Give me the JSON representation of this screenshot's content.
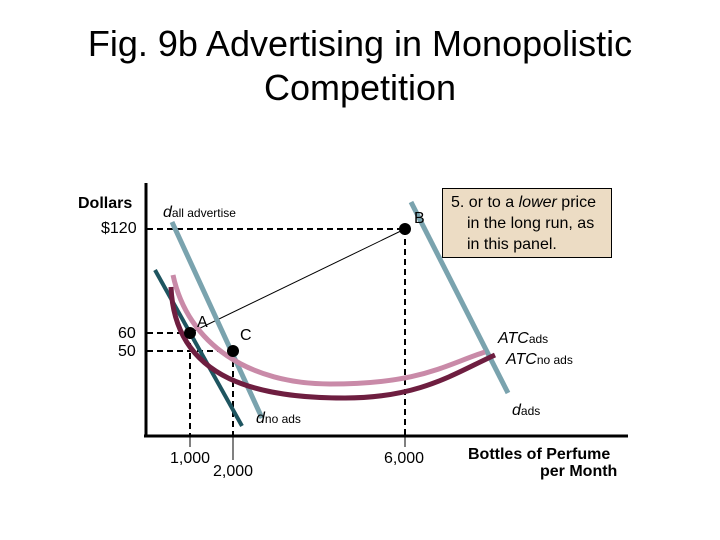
{
  "title": {
    "line1": "Fig. 9b Advertising in Monopolistic",
    "line2": "Competition"
  },
  "note": {
    "number": "5.",
    "line1_pre": "or to a ",
    "line1_em": "lower",
    "line1_post": " price",
    "line2": "in the long run, as",
    "line3": "in this panel."
  },
  "axes": {
    "y_title": "Dollars",
    "x_title_line1": "Bottles of Perfume",
    "x_title_line2": "per Month"
  },
  "y_ticks": [
    "$120",
    "60",
    "50"
  ],
  "x_ticks": [
    "1,000",
    "2,000",
    "6,000"
  ],
  "points": {
    "A": "A",
    "B": "B",
    "C": "C"
  },
  "curves": {
    "d_all": {
      "main": "d",
      "sub": "all advertise"
    },
    "d_no_ads": {
      "main": "d",
      "sub": "no ads"
    },
    "d_ads": {
      "main": "d",
      "sub": "ads"
    },
    "atc_ads": {
      "main": "ATC",
      "sub": "ads"
    },
    "atc_no_ads": {
      "main": "ATC",
      "sub": "no ads"
    }
  },
  "colors": {
    "d_all": "#7aa3ae",
    "d_ads": "#7aa3ae",
    "d_no_ads": "#1e5560",
    "atc_ads": "#c98aa8",
    "atc_no_ads": "#6e1e40",
    "note_bg": "#ecdcc4"
  }
}
